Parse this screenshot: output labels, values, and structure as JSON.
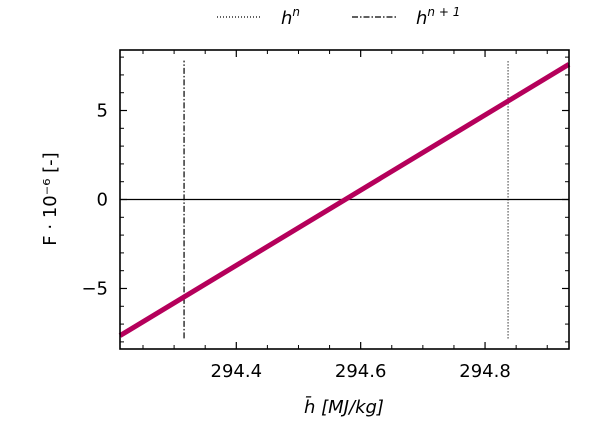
{
  "chart_data": {
    "type": "line",
    "xlabel": "h̄ [MJ/kg]",
    "ylabel": "F · 10⁻⁶ [-]",
    "xlim": [
      294.213,
      294.935
    ],
    "ylim": [
      -8.4,
      8.4
    ],
    "xticks": [
      294.4,
      294.6,
      294.8
    ],
    "xtick_labels": [
      "294.4",
      "294.6",
      "294.8"
    ],
    "yticks": [
      -5,
      0,
      5
    ],
    "ytick_labels": [
      "−5",
      "0",
      "5"
    ],
    "grid": false,
    "legend_position": "top-center",
    "legend": [
      {
        "label": "h^n",
        "base": "h",
        "sup": "n",
        "style": "dotted"
      },
      {
        "label": "h^{n+1}",
        "base": "h",
        "sup": "n + 1",
        "style": "dash-dot"
      }
    ],
    "series": [
      {
        "color": "#b5005b",
        "x": [
          294.213,
          294.935
        ],
        "y": [
          -7.65,
          7.6
        ]
      }
    ],
    "hlines": [
      {
        "y": 0,
        "color": "#000000"
      }
    ],
    "vlines": [
      {
        "x": 294.316,
        "y_range": [
          -7.8,
          7.8
        ],
        "style": "dash-dot"
      },
      {
        "x": 294.837,
        "y_range": [
          -7.8,
          7.8
        ],
        "style": "dotted"
      }
    ]
  }
}
